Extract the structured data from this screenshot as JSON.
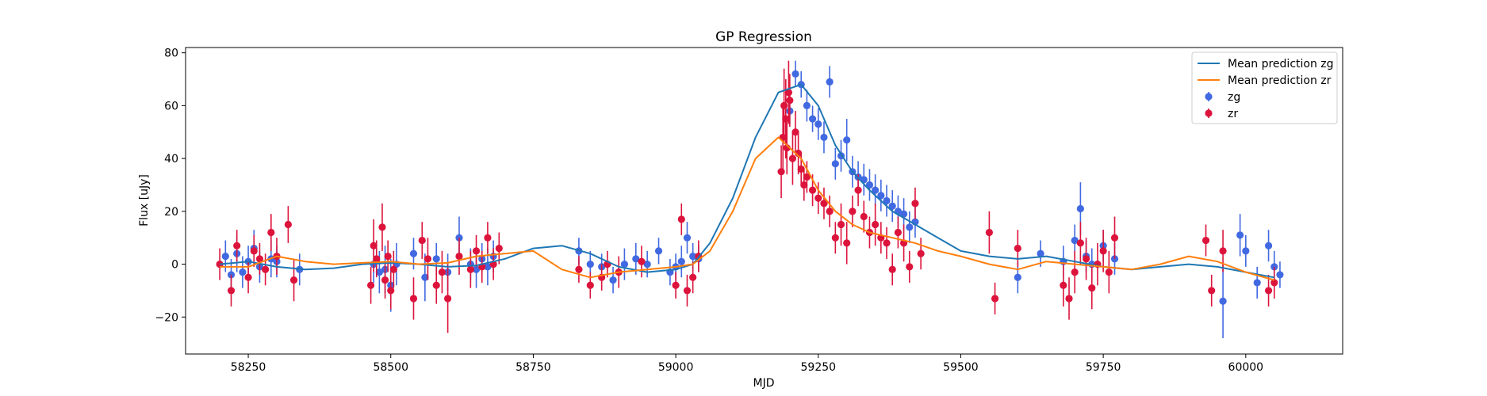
{
  "chart_data": {
    "type": "scatter",
    "title": "GP Regression",
    "xlabel": "MJD",
    "ylabel": "Flux [uJy]",
    "xlim": [
      58140,
      60170
    ],
    "ylim": [
      -34,
      82
    ],
    "xticks": [
      58250,
      58500,
      58750,
      59000,
      59250,
      59500,
      59750,
      60000
    ],
    "yticks": [
      -20,
      0,
      20,
      40,
      60,
      80
    ],
    "grid": false,
    "legend_position": "top-right",
    "lines": [
      {
        "name": "Mean prediction zg",
        "color": "#1f77b4",
        "x": [
          58200,
          58250,
          58300,
          58350,
          58400,
          58450,
          58500,
          58550,
          58600,
          58650,
          58700,
          58750,
          58800,
          58850,
          58900,
          58950,
          59000,
          59030,
          59060,
          59100,
          59140,
          59180,
          59220,
          59250,
          59280,
          59310,
          59340,
          59380,
          59420,
          59460,
          59500,
          59550,
          59600,
          59650,
          59700,
          59750,
          59800,
          59850,
          59900,
          59950,
          60000,
          60050
        ],
        "y": [
          0,
          1,
          -1,
          -2,
          -1.5,
          0,
          0.5,
          0,
          -1,
          -0.5,
          2,
          6,
          7,
          4,
          -1,
          -3,
          -2,
          0,
          8,
          25,
          48,
          65,
          68,
          60,
          45,
          35,
          28,
          20,
          15,
          10,
          5,
          3,
          2,
          3,
          1,
          -1,
          -2,
          -1,
          0,
          -1,
          -3,
          -5
        ]
      },
      {
        "name": "Mean prediction zr",
        "color": "#ff7f0e",
        "x": [
          58200,
          58250,
          58300,
          58350,
          58400,
          58450,
          58500,
          58550,
          58600,
          58650,
          58700,
          58750,
          58800,
          58850,
          58900,
          58950,
          59000,
          59030,
          59060,
          59100,
          59140,
          59180,
          59220,
          59250,
          59280,
          59310,
          59340,
          59380,
          59420,
          59460,
          59500,
          59550,
          59600,
          59650,
          59700,
          59750,
          59800,
          59850,
          59900,
          59950,
          60000,
          60050
        ],
        "y": [
          -1,
          -1,
          3,
          1,
          0,
          0.5,
          1,
          0,
          0.5,
          3,
          4,
          5,
          -2,
          -5,
          -3,
          -2,
          -1,
          0,
          5,
          20,
          40,
          48,
          40,
          28,
          20,
          15,
          12,
          10,
          8,
          5,
          3,
          0,
          -2,
          1,
          0,
          -1,
          -2,
          0,
          3,
          1,
          -3,
          -6
        ]
      }
    ],
    "series": [
      {
        "name": "zg",
        "color": "#4169e1",
        "x": [
          58210,
          58220,
          58230,
          58240,
          58250,
          58260,
          58270,
          58290,
          58300,
          58340,
          58470,
          58480,
          58490,
          58500,
          58510,
          58540,
          58560,
          58580,
          58600,
          58620,
          58640,
          58650,
          58660,
          58670,
          58680,
          58830,
          58850,
          58870,
          58890,
          58910,
          58930,
          58950,
          58970,
          58990,
          59000,
          59010,
          59020,
          59030,
          59040,
          59200,
          59210,
          59220,
          59230,
          59240,
          59250,
          59260,
          59270,
          59280,
          59290,
          59300,
          59310,
          59320,
          59330,
          59340,
          59350,
          59360,
          59370,
          59380,
          59390,
          59400,
          59410,
          59420,
          59600,
          59640,
          59680,
          59700,
          59710,
          59720,
          59730,
          59750,
          59770,
          59960,
          59990,
          60000,
          60020,
          60040,
          60050,
          60060
        ],
        "y": [
          3,
          -4,
          4,
          -3,
          1,
          6,
          -1,
          2,
          1,
          -2,
          0,
          -3,
          -2,
          -8,
          0,
          4,
          -5,
          2,
          -3,
          10,
          0,
          -2,
          2,
          -1,
          3,
          5,
          0,
          -1,
          -6,
          0,
          2,
          0,
          5,
          -3,
          -1,
          1,
          10,
          3,
          2,
          58,
          72,
          68,
          60,
          55,
          53,
          48,
          69,
          38,
          41,
          47,
          35,
          33,
          32,
          30,
          28,
          26,
          24,
          22,
          20,
          19,
          14,
          16,
          -5,
          4,
          1,
          9,
          21,
          3,
          0,
          7,
          2,
          -14,
          11,
          5,
          -7,
          7,
          -1,
          -4
        ],
        "err": [
          6,
          6,
          7,
          6,
          6,
          7,
          6,
          7,
          6,
          6,
          7,
          8,
          9,
          10,
          8,
          6,
          9,
          6,
          7,
          8,
          6,
          7,
          6,
          7,
          6,
          5,
          5,
          5,
          5,
          6,
          6,
          5,
          5,
          5,
          5,
          6,
          6,
          5,
          5,
          5,
          5,
          5,
          6,
          5,
          6,
          6,
          6,
          6,
          6,
          8,
          6,
          6,
          6,
          6,
          6,
          6,
          6,
          6,
          6,
          6,
          6,
          6,
          6,
          5,
          6,
          6,
          10,
          6,
          6,
          6,
          6,
          14,
          8,
          6,
          6,
          6,
          6,
          5
        ]
      },
      {
        "name": "zr",
        "color": "#dc143c",
        "x": [
          58200,
          58220,
          58230,
          58250,
          58260,
          58270,
          58280,
          58290,
          58300,
          58320,
          58330,
          58465,
          58470,
          58475,
          58485,
          58490,
          58495,
          58500,
          58505,
          58540,
          58555,
          58565,
          58580,
          58590,
          58600,
          58620,
          58640,
          58650,
          58660,
          58670,
          58680,
          58690,
          58830,
          58850,
          58870,
          58880,
          58900,
          58940,
          59000,
          59010,
          59020,
          59030,
          59040,
          59185,
          59188,
          59190,
          59193,
          59195,
          59198,
          59200,
          59205,
          59210,
          59215,
          59220,
          59225,
          59230,
          59240,
          59250,
          59260,
          59270,
          59280,
          59290,
          59300,
          59310,
          59320,
          59330,
          59340,
          59350,
          59360,
          59370,
          59380,
          59390,
          59400,
          59410,
          59420,
          59430,
          59550,
          59560,
          59600,
          59680,
          59690,
          59700,
          59710,
          59720,
          59730,
          59740,
          59750,
          59760,
          59770,
          59930,
          59940,
          59960,
          60040,
          60050
        ],
        "y": [
          0,
          -10,
          7,
          -5,
          5,
          2,
          -2,
          12,
          3,
          15,
          -6,
          -8,
          7,
          2,
          14,
          -6,
          3,
          -10,
          -2,
          -13,
          9,
          2,
          -8,
          -3,
          -13,
          3,
          -2,
          5,
          -1,
          10,
          0,
          6,
          -2,
          -8,
          -5,
          0,
          -3,
          1,
          -8,
          17,
          -10,
          -5,
          3,
          35,
          48,
          60,
          55,
          44,
          65,
          62,
          40,
          50,
          42,
          36,
          30,
          33,
          28,
          25,
          23,
          20,
          10,
          15,
          8,
          20,
          28,
          18,
          12,
          15,
          10,
          8,
          -2,
          12,
          8,
          -1,
          23,
          4,
          12,
          -13,
          6,
          -8,
          -13,
          -3,
          8,
          2,
          -9,
          0,
          5,
          -3,
          10,
          9,
          -10,
          5,
          -10,
          -7
        ],
        "err": [
          6,
          6,
          6,
          6,
          6,
          6,
          6,
          7,
          7,
          7,
          8,
          7,
          10,
          7,
          9,
          7,
          6,
          7,
          7,
          8,
          7,
          8,
          7,
          8,
          13,
          7,
          7,
          6,
          6,
          6,
          6,
          6,
          5,
          5,
          5,
          5,
          6,
          6,
          5,
          6,
          6,
          6,
          6,
          10,
          12,
          14,
          15,
          10,
          12,
          10,
          10,
          8,
          8,
          6,
          6,
          6,
          6,
          6,
          6,
          6,
          6,
          8,
          8,
          6,
          6,
          6,
          6,
          8,
          6,
          6,
          6,
          6,
          7,
          6,
          6,
          6,
          8,
          6,
          7,
          8,
          8,
          8,
          8,
          8,
          8,
          8,
          8,
          8,
          8,
          6,
          6,
          8,
          6,
          6
        ]
      }
    ]
  }
}
